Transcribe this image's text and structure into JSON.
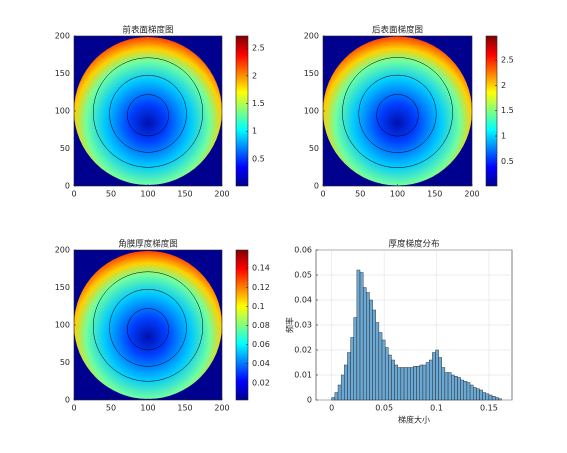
{
  "chart_data": [
    {
      "type": "image",
      "title": "前表面梯度图",
      "colormap": "jet",
      "xlim": [
        0,
        200
      ],
      "ylim": [
        0,
        200
      ],
      "xticks": [
        0,
        50,
        100,
        150,
        200
      ],
      "yticks": [
        0,
        50,
        100,
        150,
        200
      ],
      "clim": [
        0.01,
        2.72
      ],
      "cticks": [
        0.5,
        1,
        1.5,
        2,
        2.5
      ]
    },
    {
      "type": "image",
      "title": "后表面梯度图",
      "colormap": "jet",
      "xlim": [
        0,
        200
      ],
      "ylim": [
        0,
        200
      ],
      "xticks": [
        0,
        50,
        100,
        150,
        200
      ],
      "yticks": [
        0,
        50,
        100,
        150,
        200
      ],
      "clim": [
        0.01,
        2.98
      ],
      "cticks": [
        0.5,
        1,
        1.5,
        2,
        2.5
      ]
    },
    {
      "type": "image",
      "title": "角膜厚度梯度图",
      "colormap": "jet",
      "xlim": [
        0,
        200
      ],
      "ylim": [
        0,
        200
      ],
      "xticks": [
        0,
        50,
        100,
        150,
        200
      ],
      "yticks": [
        0,
        50,
        100,
        150,
        200
      ],
      "clim": [
        0.002,
        0.159
      ],
      "cticks": [
        0.02,
        0.04,
        0.06,
        0.08,
        0.1,
        0.12,
        0.14
      ]
    },
    {
      "type": "histogram",
      "title": "厚度梯度分布",
      "x_label": "梯度大小",
      "y_label": "频率",
      "color": "#6ba8d4",
      "grid": true,
      "xlim": [
        -0.015,
        0.172
      ],
      "ylim": [
        0,
        0.06
      ],
      "xticks": [
        0,
        0.05,
        0.1,
        0.15
      ],
      "yticks": [
        0,
        0.01,
        0.02,
        0.03,
        0.04,
        0.05,
        0.06
      ],
      "bins": [
        0,
        0.003,
        0.006,
        0.009,
        0.012,
        0.015,
        0.018,
        0.021,
        0.024,
        0.027,
        0.03,
        0.033,
        0.036,
        0.039,
        0.042,
        0.045,
        0.048,
        0.051,
        0.054,
        0.057,
        0.06,
        0.063,
        0.066,
        0.069,
        0.072,
        0.075,
        0.078,
        0.081,
        0.084,
        0.087,
        0.09,
        0.093,
        0.096,
        0.099,
        0.102,
        0.105,
        0.108,
        0.111,
        0.114,
        0.117,
        0.12,
        0.123,
        0.126,
        0.129,
        0.132,
        0.135,
        0.138,
        0.141,
        0.144,
        0.147,
        0.15,
        0.153,
        0.156,
        0.159,
        0.162
      ],
      "values": [
        0.001,
        0.003,
        0.006,
        0.01,
        0.014,
        0.019,
        0.025,
        0.033,
        0.052,
        0.051,
        0.045,
        0.043,
        0.04,
        0.036,
        0.031,
        0.027,
        0.024,
        0.021,
        0.018,
        0.016,
        0.014,
        0.013,
        0.013,
        0.013,
        0.013,
        0.013,
        0.0135,
        0.0135,
        0.014,
        0.014,
        0.015,
        0.016,
        0.019,
        0.02,
        0.017,
        0.013,
        0.011,
        0.011,
        0.01,
        0.0095,
        0.009,
        0.008,
        0.0075,
        0.007,
        0.006,
        0.005,
        0.0045,
        0.004,
        0.003,
        0.0025,
        0.002,
        0.0015,
        0.001,
        0.0005
      ]
    }
  ]
}
